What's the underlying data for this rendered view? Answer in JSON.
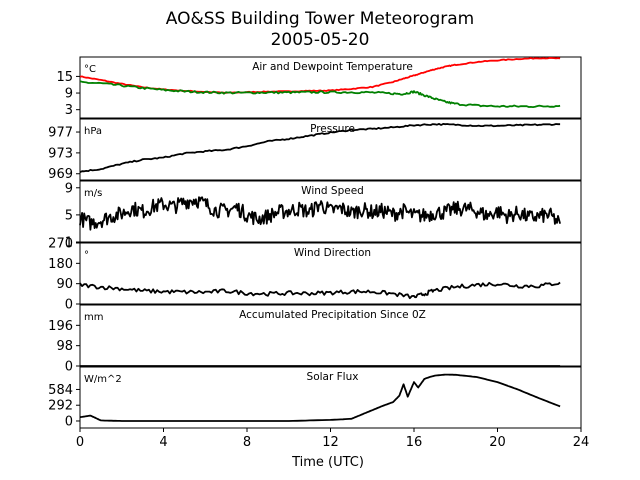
{
  "figure": {
    "title_line1": "AO&SS Building Tower Meteorogram",
    "title_line2": "2005-05-20",
    "xlabel": "Time (UTC)"
  },
  "colors": {
    "temperature": "#ff0000",
    "dewpoint": "#008000",
    "line": "#000000"
  },
  "chart_data": [
    {
      "type": "line",
      "id": "temp",
      "title": "Air and Dewpoint Temperature",
      "unit": "°C",
      "ylim": [
        0,
        22
      ],
      "yticks": [
        3,
        9,
        15
      ],
      "xlim": [
        0,
        24
      ],
      "series": [
        {
          "color_key": "temperature",
          "x": [
            0,
            1,
            2,
            3,
            4,
            5,
            6,
            7,
            8,
            9,
            10,
            11,
            12,
            13,
            14,
            15,
            15.5,
            16,
            16.5,
            17,
            17.5,
            18,
            19,
            20,
            21,
            22,
            23
          ],
          "y": [
            15,
            13.7,
            12.3,
            11.1,
            10.3,
            9.8,
            9.4,
            9.1,
            9.3,
            9.5,
            9.6,
            9.8,
            9.9,
            10.5,
            11.2,
            13,
            14.2,
            15.3,
            16.5,
            17.6,
            18.5,
            19.2,
            20.2,
            20.8,
            21.3,
            21.6,
            21.5
          ]
        },
        {
          "color_key": "dewpoint",
          "x": [
            0,
            1,
            2,
            3,
            4,
            5,
            6,
            7,
            8,
            9,
            10,
            11,
            12,
            13,
            14,
            15,
            15.5,
            16,
            16.5,
            17,
            17.5,
            18,
            19,
            20,
            21,
            22,
            23
          ],
          "y": [
            12.9,
            12.5,
            11.7,
            10.8,
            10.1,
            9.6,
            9.3,
            9.1,
            9.1,
            9.2,
            9.2,
            9.3,
            9.3,
            9.3,
            9.2,
            8.8,
            8.7,
            9.5,
            8.2,
            6.9,
            5.8,
            5.1,
            4.5,
            4.2,
            4.2,
            4.2,
            4.4
          ]
        }
      ]
    },
    {
      "type": "line",
      "id": "pressure",
      "title": "Pressure",
      "unit": "hPa",
      "ylim": [
        967.8,
        979.5
      ],
      "yticks": [
        969,
        973,
        977
      ],
      "xlim": [
        0,
        24
      ],
      "series": [
        {
          "color_key": "line",
          "x": [
            0,
            1,
            2,
            3,
            4,
            5,
            6,
            7,
            8,
            9,
            10,
            11,
            12,
            13,
            14,
            15,
            16,
            17,
            18,
            19,
            20,
            21,
            22,
            23
          ],
          "y": [
            969.4,
            969.9,
            970.9,
            971.7,
            972.1,
            972.9,
            973.3,
            973.6,
            974.3,
            975.2,
            975.7,
            976.3,
            976.9,
            977.4,
            977.6,
            977.9,
            978.3,
            978.5,
            978.4,
            978.2,
            978.2,
            978.3,
            978.4,
            978.5
          ]
        }
      ]
    },
    {
      "type": "line",
      "id": "wind_speed",
      "title": "Wind Speed",
      "unit": "m/s",
      "ylim": [
        1,
        10
      ],
      "yticks": [
        1,
        5,
        9
      ],
      "xlim": [
        0,
        24
      ],
      "series": [
        {
          "color_key": "line",
          "x": [
            0,
            0.5,
            1,
            1.5,
            2,
            2.5,
            3,
            3.5,
            4,
            4.5,
            5,
            5.5,
            6,
            6.5,
            7,
            7.5,
            8,
            8.5,
            9,
            9.5,
            10,
            10.5,
            11,
            11.5,
            12,
            12.5,
            13,
            13.5,
            14,
            14.5,
            15,
            15.5,
            16,
            16.5,
            17,
            17.5,
            18,
            18.5,
            19,
            19.5,
            20,
            20.5,
            21,
            21.5,
            22,
            22.5,
            23
          ],
          "y": [
            4.5,
            3.8,
            4.2,
            4.8,
            5.2,
            6.0,
            5.5,
            6.2,
            6.6,
            6.2,
            6.9,
            7.3,
            6.6,
            5.7,
            5.6,
            6.1,
            5.0,
            4.4,
            4.8,
            5.4,
            5.6,
            5.9,
            5.4,
            6.6,
            5.6,
            6.0,
            5.3,
            5.8,
            5.4,
            5.6,
            5.1,
            5.6,
            4.9,
            4.9,
            5.3,
            5.4,
            5.9,
            5.9,
            5.6,
            4.9,
            5.5,
            4.8,
            5.3,
            4.6,
            4.8,
            5.0,
            3.7
          ]
        }
      ]
    },
    {
      "type": "line",
      "id": "wind_dir",
      "title": "Wind Direction",
      "unit": "°",
      "ylim": [
        0,
        270
      ],
      "yticks": [
        0,
        90,
        180,
        270
      ],
      "xlim": [
        0,
        24
      ],
      "series": [
        {
          "color_key": "line",
          "x": [
            0,
            1,
            2,
            3,
            4,
            5,
            6,
            7,
            8,
            9,
            10,
            11,
            12,
            13,
            14,
            15,
            16,
            16.5,
            17,
            18,
            19,
            20,
            21,
            22,
            23
          ],
          "y": [
            85,
            75,
            68,
            58,
            55,
            53,
            52,
            58,
            48,
            45,
            48,
            47,
            50,
            55,
            55,
            45,
            30,
            45,
            60,
            75,
            85,
            90,
            80,
            80,
            95
          ]
        }
      ]
    },
    {
      "type": "line",
      "id": "precip",
      "title": "Accumulated Precipitation Since 0Z",
      "unit": "mm",
      "ylim": [
        0,
        294
      ],
      "yticks": [
        0,
        98,
        196
      ],
      "xlim": [
        0,
        24
      ],
      "series": [
        {
          "color_key": "line",
          "x": [
            0,
            23
          ],
          "y": [
            0,
            0
          ]
        }
      ]
    },
    {
      "type": "line",
      "id": "solar",
      "title": "Solar Flux",
      "unit": "W/m^2",
      "ylim": [
        -130,
        1000
      ],
      "yticks": [
        0,
        292,
        584
      ],
      "xlim": [
        0,
        24
      ],
      "xticks": [
        0,
        4,
        8,
        12,
        16,
        20,
        24
      ],
      "series": [
        {
          "color_key": "line",
          "x": [
            0,
            0.5,
            1,
            2,
            4,
            6,
            8,
            10,
            12,
            13,
            13.5,
            14,
            14.5,
            15,
            15.3,
            15.5,
            15.7,
            16,
            16.2,
            16.5,
            16.8,
            17,
            17.5,
            18,
            19,
            20,
            21,
            22,
            23
          ],
          "y": [
            70,
            100,
            10,
            0,
            0,
            0,
            0,
            0,
            20,
            40,
            120,
            200,
            280,
            350,
            470,
            680,
            450,
            720,
            620,
            780,
            820,
            840,
            860,
            855,
            815,
            720,
            580,
            420,
            270
          ]
        }
      ]
    }
  ]
}
